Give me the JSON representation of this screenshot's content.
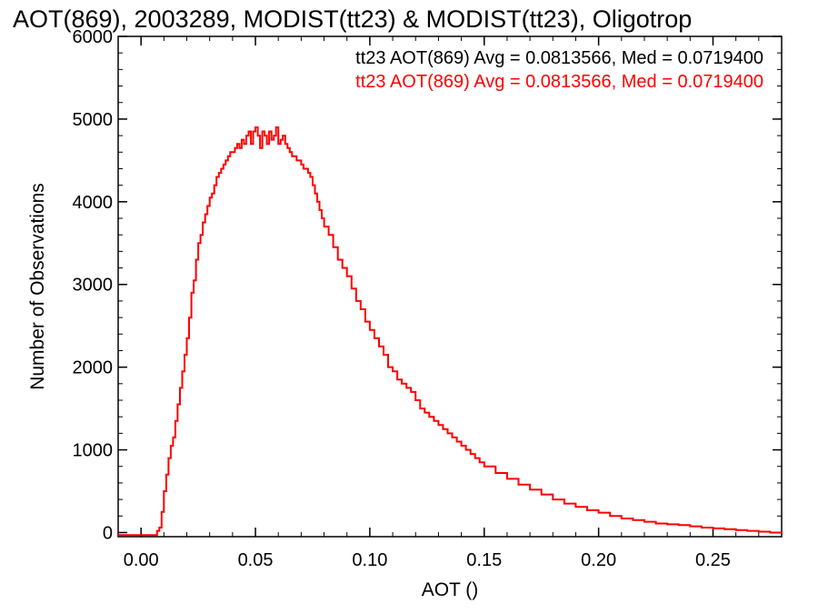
{
  "chart_data": {
    "type": "line",
    "title": "AOT(869), 2003289, MODIST(tt23) & MODIST(tt23), Oligotrop",
    "xlabel": "AOT ()",
    "ylabel": "Number of Observations",
    "xlim": [
      -0.01,
      0.28
    ],
    "ylim": [
      -50,
      6000
    ],
    "x_ticks": [
      0.0,
      0.05,
      0.1,
      0.15,
      0.2,
      0.25
    ],
    "x_tick_labels": [
      "0.00",
      "0.05",
      "0.10",
      "0.15",
      "0.20",
      "0.25"
    ],
    "y_ticks": [
      0,
      1000,
      2000,
      3000,
      4000,
      5000,
      6000
    ],
    "y_tick_labels": [
      "0",
      "1000",
      "2000",
      "3000",
      "4000",
      "5000",
      "6000"
    ],
    "step": true,
    "annotations": [
      {
        "text": "tt23 AOT(869) Avg = 0.0813566, Med = 0.0719400",
        "color": "#000000"
      },
      {
        "text": "tt23 AOT(869) Avg = 0.0813566, Med = 0.0719400",
        "color": "#ff0000"
      }
    ],
    "series": [
      {
        "color": "#ff0000",
        "x": [
          -0.01,
          0.0,
          0.005,
          0.007,
          0.008,
          0.009,
          0.01,
          0.011,
          0.012,
          0.013,
          0.014,
          0.015,
          0.016,
          0.017,
          0.018,
          0.019,
          0.02,
          0.021,
          0.022,
          0.023,
          0.024,
          0.025,
          0.026,
          0.027,
          0.028,
          0.029,
          0.03,
          0.031,
          0.032,
          0.033,
          0.034,
          0.035,
          0.036,
          0.037,
          0.038,
          0.039,
          0.04,
          0.041,
          0.042,
          0.043,
          0.044,
          0.045,
          0.046,
          0.047,
          0.048,
          0.049,
          0.05,
          0.051,
          0.052,
          0.053,
          0.054,
          0.055,
          0.056,
          0.057,
          0.058,
          0.059,
          0.06,
          0.061,
          0.062,
          0.063,
          0.064,
          0.065,
          0.066,
          0.067,
          0.068,
          0.069,
          0.07,
          0.071,
          0.072,
          0.073,
          0.074,
          0.075,
          0.076,
          0.077,
          0.078,
          0.079,
          0.08,
          0.082,
          0.084,
          0.086,
          0.088,
          0.09,
          0.092,
          0.094,
          0.096,
          0.098,
          0.1,
          0.102,
          0.104,
          0.106,
          0.108,
          0.11,
          0.112,
          0.114,
          0.116,
          0.118,
          0.12,
          0.122,
          0.124,
          0.126,
          0.128,
          0.13,
          0.132,
          0.134,
          0.136,
          0.138,
          0.14,
          0.142,
          0.144,
          0.146,
          0.148,
          0.15,
          0.155,
          0.16,
          0.165,
          0.17,
          0.175,
          0.18,
          0.185,
          0.19,
          0.195,
          0.2,
          0.205,
          0.21,
          0.215,
          0.22,
          0.225,
          0.23,
          0.235,
          0.24,
          0.245,
          0.25,
          0.255,
          0.26,
          0.265,
          0.27,
          0.275,
          0.28
        ],
        "y": [
          -30,
          -30,
          -30,
          20,
          60,
          250,
          500,
          700,
          900,
          1050,
          1150,
          1350,
          1550,
          1750,
          1950,
          2150,
          2350,
          2600,
          2900,
          3050,
          3300,
          3500,
          3600,
          3750,
          3850,
          3950,
          4050,
          4100,
          4200,
          4300,
          4350,
          4400,
          4450,
          4500,
          4550,
          4600,
          4600,
          4650,
          4700,
          4650,
          4750,
          4700,
          4800,
          4850,
          4700,
          4850,
          4900,
          4800,
          4650,
          4850,
          4800,
          4700,
          4850,
          4750,
          4800,
          4900,
          4700,
          4750,
          4800,
          4700,
          4650,
          4600,
          4550,
          4550,
          4500,
          4500,
          4450,
          4400,
          4400,
          4350,
          4300,
          4200,
          4100,
          4000,
          3900,
          3800,
          3700,
          3600,
          3450,
          3300,
          3200,
          3100,
          2950,
          2800,
          2700,
          2550,
          2450,
          2350,
          2250,
          2150,
          2000,
          1950,
          1850,
          1800,
          1750,
          1700,
          1600,
          1500,
          1450,
          1400,
          1350,
          1300,
          1250,
          1200,
          1150,
          1100,
          1050,
          1000,
          950,
          900,
          850,
          800,
          720,
          650,
          580,
          520,
          460,
          400,
          350,
          310,
          270,
          240,
          200,
          170,
          150,
          130,
          110,
          100,
          90,
          75,
          60,
          50,
          40,
          30,
          20,
          10,
          0,
          -10
        ]
      }
    ]
  }
}
